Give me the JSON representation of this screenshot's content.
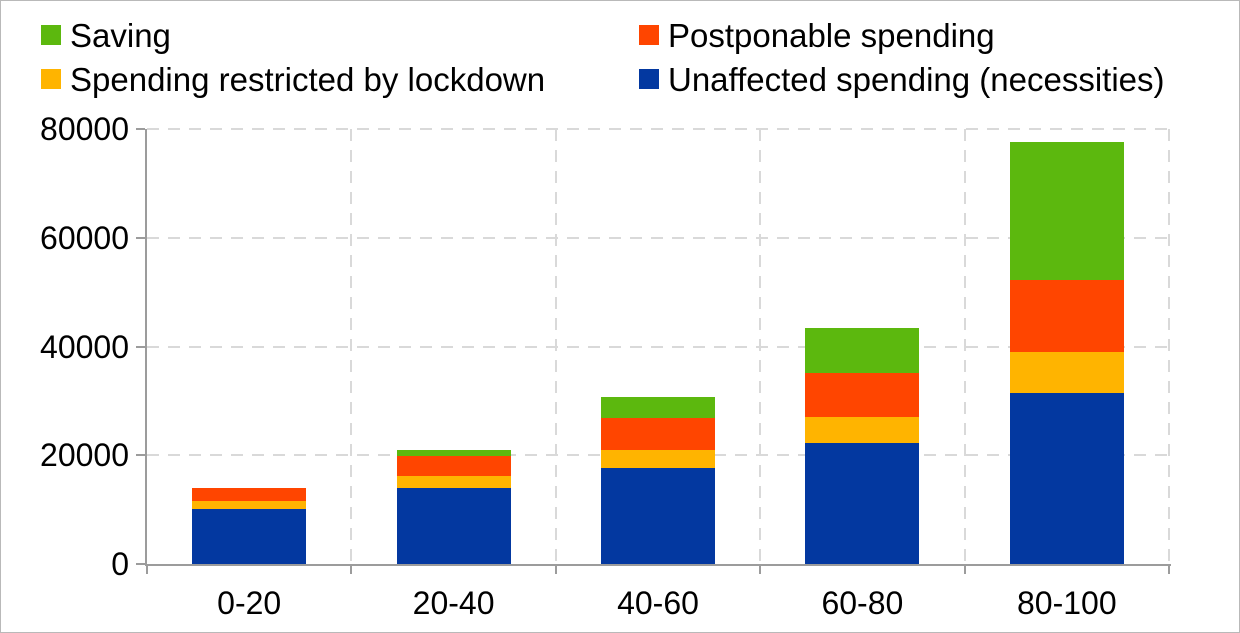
{
  "chart_data": {
    "type": "bar",
    "stacked": true,
    "title": "",
    "xlabel": "",
    "ylabel": "",
    "categories": [
      "0-20",
      "20-40",
      "40-60",
      "60-80",
      "80-100"
    ],
    "ylim": [
      0,
      80000
    ],
    "yticks": [
      0,
      20000,
      40000,
      60000,
      80000
    ],
    "grid": "dashed horizontal and vertical, light gray",
    "legend_position": "top, two columns",
    "series": [
      {
        "key": "unaffected",
        "name": "Unaffected spending (necessities)",
        "color": "#0338A0",
        "values": [
          10100,
          14000,
          17700,
          22300,
          31400
        ]
      },
      {
        "key": "restricted",
        "name": "Spending restricted by lockdown",
        "color": "#FFB400",
        "values": [
          1500,
          2200,
          3300,
          4700,
          7600
        ]
      },
      {
        "key": "postponable",
        "name": "Postponable spending",
        "color": "#FF4500",
        "values": [
          2300,
          3700,
          5800,
          8100,
          13200
        ]
      },
      {
        "key": "saving",
        "name": "Saving",
        "color": "#5CB80E",
        "values": [
          0,
          1100,
          3900,
          8300,
          25400
        ]
      }
    ]
  },
  "legend": {
    "display_order": [
      3,
      2,
      1,
      0
    ]
  },
  "colors": {
    "axis": "#9C9C9C",
    "gridline": "#D9D9D9",
    "text": "#000000",
    "background": "#FFFFFF"
  }
}
